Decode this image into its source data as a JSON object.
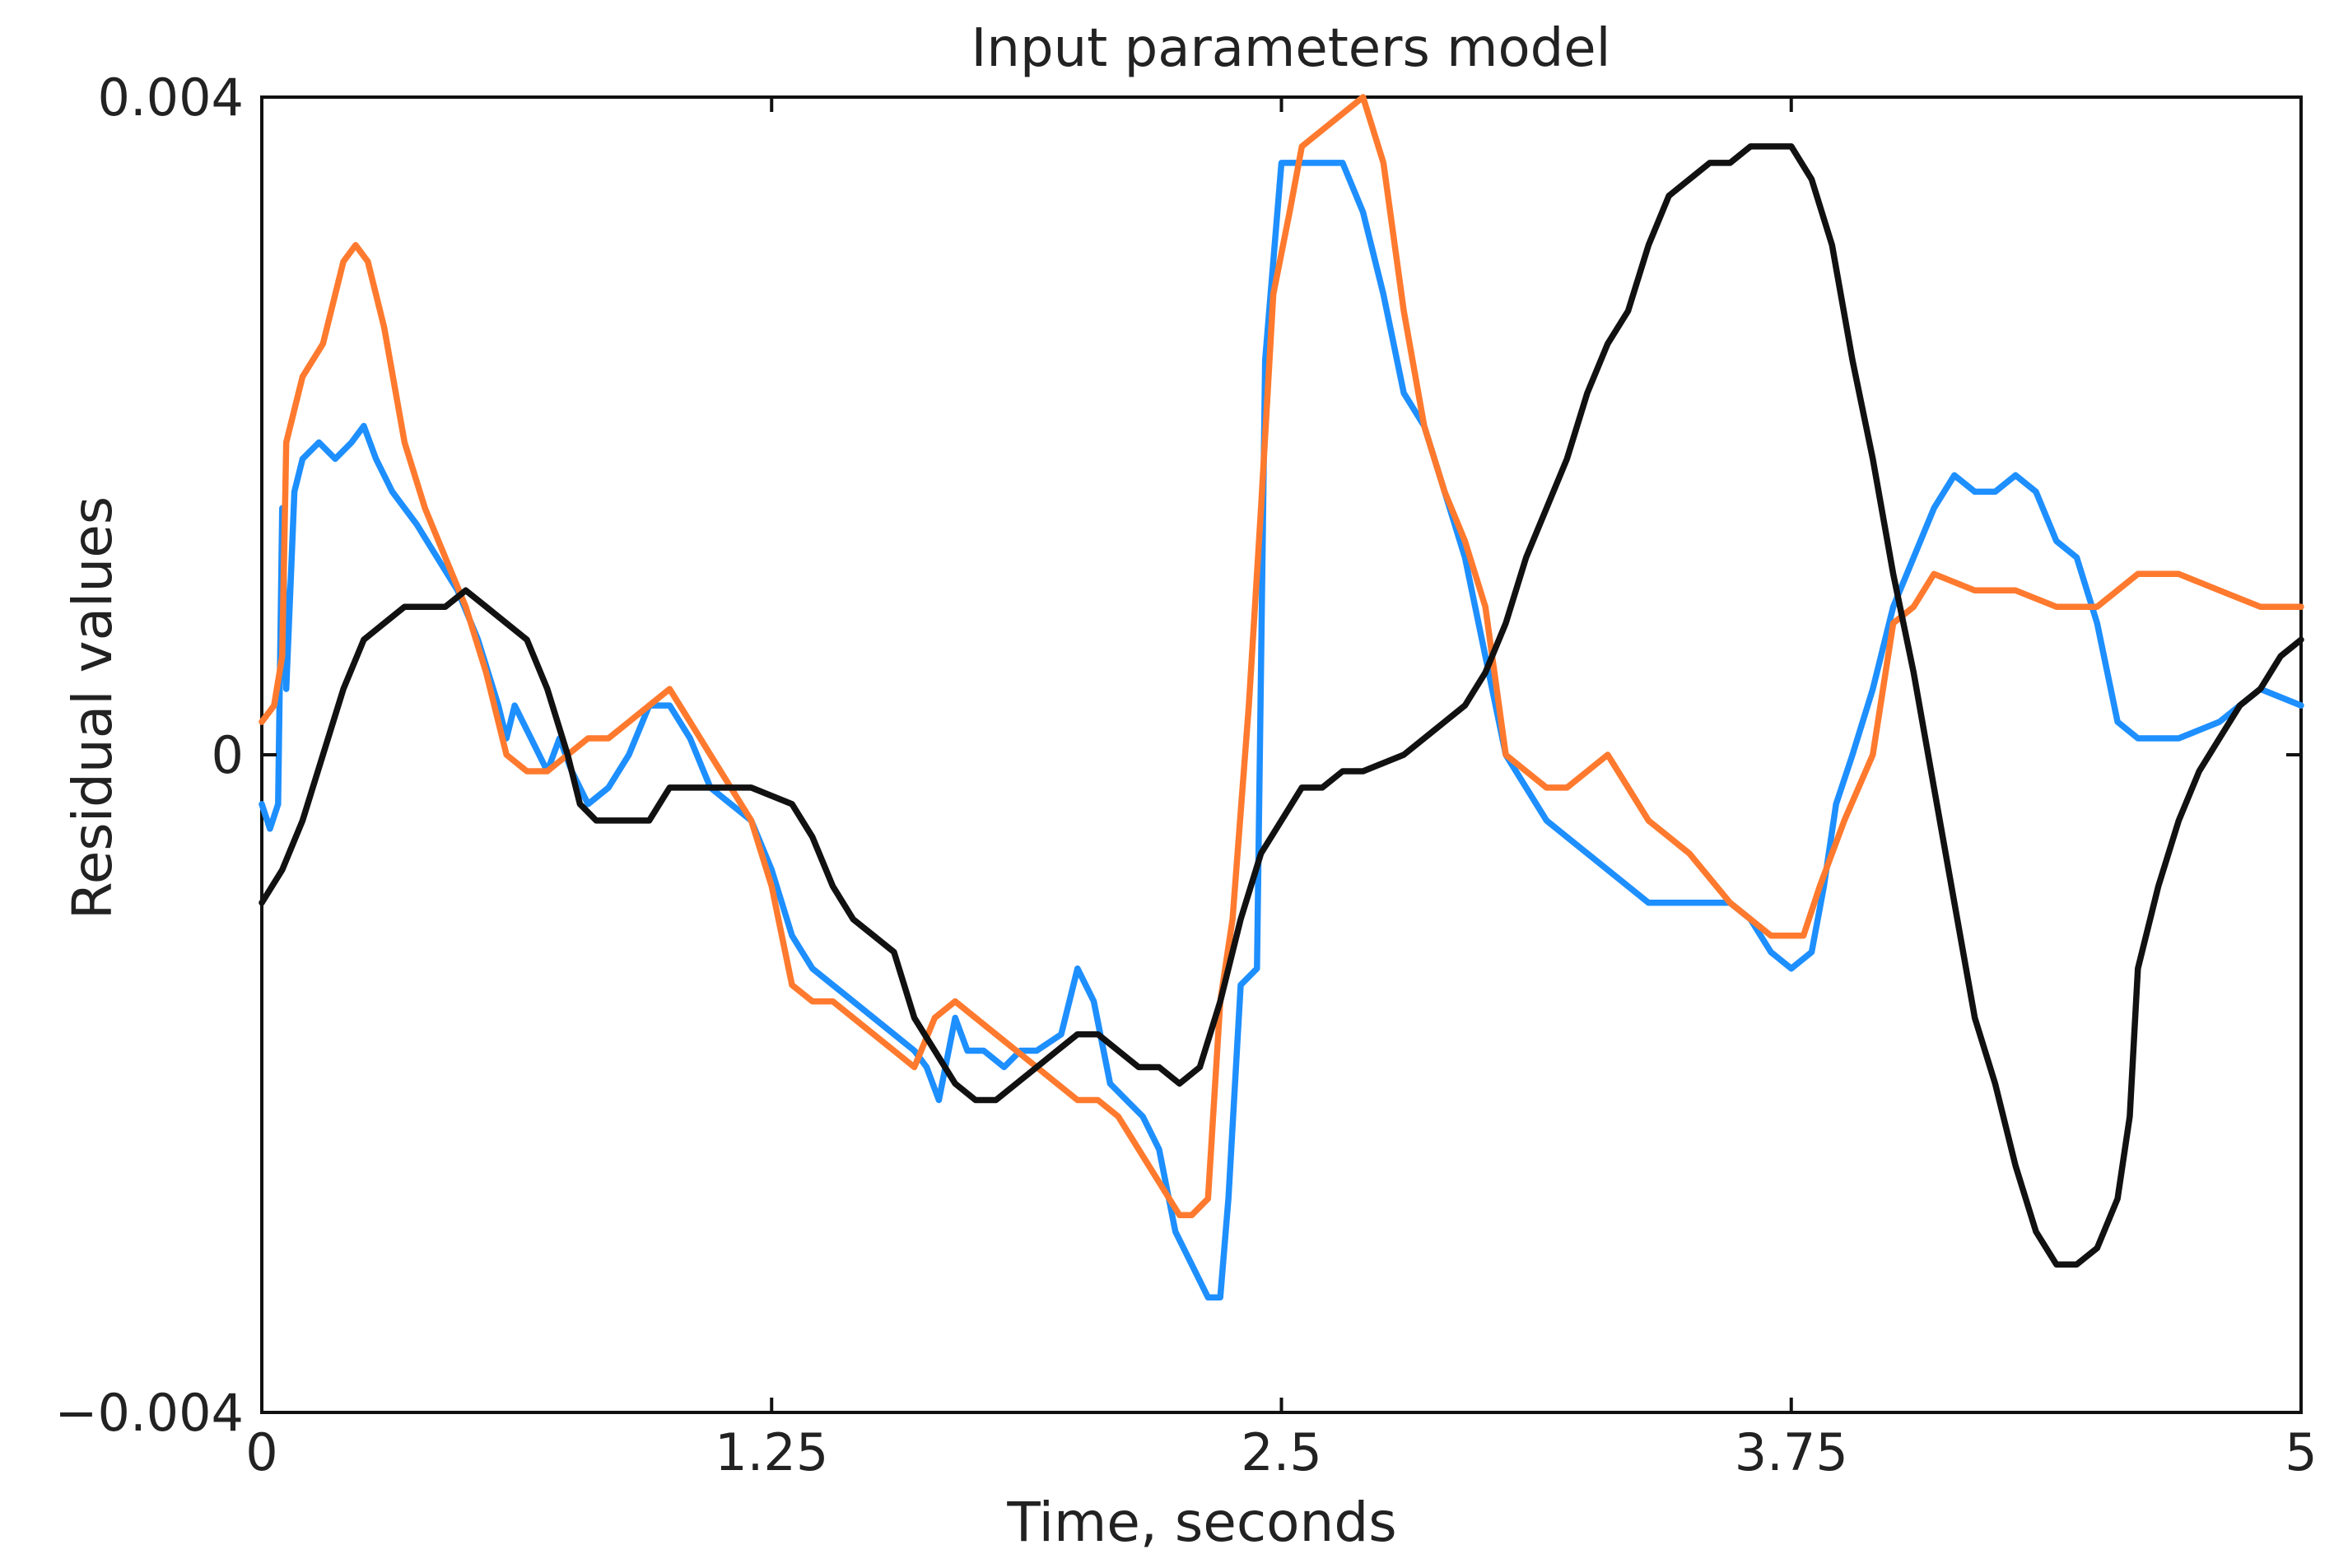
{
  "chart_data": {
    "type": "line",
    "title": "Input parameters model",
    "xlabel": "Time, seconds",
    "ylabel": "Residual values",
    "xlim": [
      0,
      5
    ],
    "ylim": [
      -0.004,
      0.004
    ],
    "x_ticks": [
      0,
      1.25,
      2.5,
      3.75,
      5
    ],
    "x_tick_labels": [
      "0",
      "1.25",
      "2.5",
      "3.75",
      "5"
    ],
    "y_ticks": [
      -0.004,
      0,
      0.004
    ],
    "y_tick_labels": [
      "−0.004",
      "0",
      "0.004"
    ],
    "grid": false,
    "legend": "none",
    "series": [
      {
        "color": "#1e8fff",
        "points": [
          [
            0,
            -0.0003
          ],
          [
            0.02,
            -0.00045
          ],
          [
            0.04,
            -0.0003
          ],
          [
            0.05,
            0.0015
          ],
          [
            0.06,
            0.0004
          ],
          [
            0.08,
            0.0016
          ],
          [
            0.1,
            0.0018
          ],
          [
            0.14,
            0.0019
          ],
          [
            0.18,
            0.0018
          ],
          [
            0.22,
            0.0019
          ],
          [
            0.25,
            0.002
          ],
          [
            0.28,
            0.0018
          ],
          [
            0.32,
            0.0016
          ],
          [
            0.38,
            0.0014
          ],
          [
            0.43,
            0.0012
          ],
          [
            0.48,
            0.001
          ],
          [
            0.53,
            0.0007
          ],
          [
            0.58,
            0.0003
          ],
          [
            0.6,
            0.0001
          ],
          [
            0.62,
            0.0003
          ],
          [
            0.66,
            0.0001
          ],
          [
            0.7,
            -0.0001
          ],
          [
            0.73,
            0.0001
          ],
          [
            0.76,
            -0.0001
          ],
          [
            0.8,
            -0.0003
          ],
          [
            0.85,
            -0.0002
          ],
          [
            0.9,
            0.0
          ],
          [
            0.95,
            0.0003
          ],
          [
            1.0,
            0.0003
          ],
          [
            1.05,
            0.0001
          ],
          [
            1.1,
            -0.0002
          ],
          [
            1.15,
            -0.0003
          ],
          [
            1.2,
            -0.0004
          ],
          [
            1.25,
            -0.0007
          ],
          [
            1.3,
            -0.0011
          ],
          [
            1.35,
            -0.0013
          ],
          [
            1.4,
            -0.0014
          ],
          [
            1.45,
            -0.0015
          ],
          [
            1.5,
            -0.0016
          ],
          [
            1.55,
            -0.0017
          ],
          [
            1.6,
            -0.0018
          ],
          [
            1.63,
            -0.0019
          ],
          [
            1.66,
            -0.0021
          ],
          [
            1.7,
            -0.0016
          ],
          [
            1.73,
            -0.0018
          ],
          [
            1.77,
            -0.0018
          ],
          [
            1.82,
            -0.0019
          ],
          [
            1.86,
            -0.0018
          ],
          [
            1.9,
            -0.0018
          ],
          [
            1.96,
            -0.0017
          ],
          [
            2.0,
            -0.0013
          ],
          [
            2.04,
            -0.0015
          ],
          [
            2.08,
            -0.002
          ],
          [
            2.12,
            -0.0021
          ],
          [
            2.16,
            -0.0022
          ],
          [
            2.2,
            -0.0024
          ],
          [
            2.24,
            -0.0029
          ],
          [
            2.28,
            -0.0031
          ],
          [
            2.32,
            -0.0033
          ],
          [
            2.35,
            -0.0033
          ],
          [
            2.37,
            -0.0027
          ],
          [
            2.4,
            -0.0014
          ],
          [
            2.44,
            -0.0013
          ],
          [
            2.46,
            0.0024
          ],
          [
            2.5,
            0.0036
          ],
          [
            2.55,
            0.0036
          ],
          [
            2.6,
            0.0036
          ],
          [
            2.65,
            0.0036
          ],
          [
            2.7,
            0.0033
          ],
          [
            2.75,
            0.0028
          ],
          [
            2.8,
            0.0022
          ],
          [
            2.85,
            0.002
          ],
          [
            2.9,
            0.0016
          ],
          [
            2.95,
            0.0012
          ],
          [
            3.0,
            0.0006
          ],
          [
            3.05,
            0.0
          ],
          [
            3.1,
            -0.0002
          ],
          [
            3.15,
            -0.0004
          ],
          [
            3.2,
            -0.0005
          ],
          [
            3.3,
            -0.0007
          ],
          [
            3.4,
            -0.0009
          ],
          [
            3.5,
            -0.0009
          ],
          [
            3.6,
            -0.0009
          ],
          [
            3.65,
            -0.001
          ],
          [
            3.7,
            -0.0012
          ],
          [
            3.75,
            -0.0013
          ],
          [
            3.8,
            -0.0012
          ],
          [
            3.83,
            -0.0008
          ],
          [
            3.86,
            -0.0003
          ],
          [
            3.9,
            0.0
          ],
          [
            3.95,
            0.0004
          ],
          [
            4.0,
            0.0009
          ],
          [
            4.05,
            0.0012
          ],
          [
            4.1,
            0.0015
          ],
          [
            4.15,
            0.0017
          ],
          [
            4.2,
            0.0016
          ],
          [
            4.25,
            0.0016
          ],
          [
            4.3,
            0.0017
          ],
          [
            4.35,
            0.0016
          ],
          [
            4.4,
            0.0013
          ],
          [
            4.45,
            0.0012
          ],
          [
            4.5,
            0.0008
          ],
          [
            4.55,
            0.0002
          ],
          [
            4.6,
            0.0001
          ],
          [
            4.7,
            0.0001
          ],
          [
            4.8,
            0.0002
          ],
          [
            4.9,
            0.0004
          ],
          [
            5.0,
            0.0003
          ]
        ]
      },
      {
        "color": "#ff7a2e",
        "points": [
          [
            0,
            0.0002
          ],
          [
            0.03,
            0.0003
          ],
          [
            0.05,
            0.0006
          ],
          [
            0.06,
            0.0019
          ],
          [
            0.1,
            0.0023
          ],
          [
            0.15,
            0.0025
          ],
          [
            0.2,
            0.003
          ],
          [
            0.23,
            0.0031
          ],
          [
            0.26,
            0.003
          ],
          [
            0.3,
            0.0026
          ],
          [
            0.35,
            0.0019
          ],
          [
            0.4,
            0.0015
          ],
          [
            0.45,
            0.0012
          ],
          [
            0.5,
            0.0009
          ],
          [
            0.55,
            0.0005
          ],
          [
            0.58,
            0.0002
          ],
          [
            0.6,
            0.0
          ],
          [
            0.65,
            -0.0001
          ],
          [
            0.7,
            -0.0001
          ],
          [
            0.75,
            0.0
          ],
          [
            0.8,
            0.0001
          ],
          [
            0.85,
            0.0001
          ],
          [
            0.9,
            0.0002
          ],
          [
            0.95,
            0.0003
          ],
          [
            1.0,
            0.0004
          ],
          [
            1.05,
            0.0002
          ],
          [
            1.1,
            0.0
          ],
          [
            1.15,
            -0.0002
          ],
          [
            1.2,
            -0.0004
          ],
          [
            1.25,
            -0.0008
          ],
          [
            1.3,
            -0.0014
          ],
          [
            1.35,
            -0.0015
          ],
          [
            1.4,
            -0.0015
          ],
          [
            1.45,
            -0.0016
          ],
          [
            1.5,
            -0.0017
          ],
          [
            1.55,
            -0.0018
          ],
          [
            1.6,
            -0.0019
          ],
          [
            1.65,
            -0.0016
          ],
          [
            1.7,
            -0.0015
          ],
          [
            1.75,
            -0.0016
          ],
          [
            1.8,
            -0.0017
          ],
          [
            1.85,
            -0.0018
          ],
          [
            1.9,
            -0.0019
          ],
          [
            1.95,
            -0.002
          ],
          [
            2.0,
            -0.0021
          ],
          [
            2.05,
            -0.0021
          ],
          [
            2.1,
            -0.0022
          ],
          [
            2.15,
            -0.0024
          ],
          [
            2.2,
            -0.0026
          ],
          [
            2.25,
            -0.0028
          ],
          [
            2.28,
            -0.0028
          ],
          [
            2.32,
            -0.0027
          ],
          [
            2.35,
            -0.0015
          ],
          [
            2.38,
            -0.001
          ],
          [
            2.42,
            0.0003
          ],
          [
            2.45,
            0.0015
          ],
          [
            2.48,
            0.0028
          ],
          [
            2.52,
            0.0033
          ],
          [
            2.55,
            0.0037
          ],
          [
            2.6,
            0.0038
          ],
          [
            2.65,
            0.0039
          ],
          [
            2.7,
            0.004
          ],
          [
            2.75,
            0.0036
          ],
          [
            2.8,
            0.0027
          ],
          [
            2.85,
            0.002
          ],
          [
            2.9,
            0.0016
          ],
          [
            2.95,
            0.0013
          ],
          [
            3.0,
            0.0009
          ],
          [
            3.05,
            0.0
          ],
          [
            3.1,
            -0.0001
          ],
          [
            3.15,
            -0.0002
          ],
          [
            3.2,
            -0.0002
          ],
          [
            3.25,
            -0.0001
          ],
          [
            3.3,
            0.0
          ],
          [
            3.35,
            -0.0002
          ],
          [
            3.4,
            -0.0004
          ],
          [
            3.5,
            -0.0006
          ],
          [
            3.6,
            -0.0009
          ],
          [
            3.7,
            -0.0011
          ],
          [
            3.75,
            -0.0011
          ],
          [
            3.78,
            -0.0011
          ],
          [
            3.82,
            -0.0008
          ],
          [
            3.88,
            -0.0004
          ],
          [
            3.95,
            0.0
          ],
          [
            4.0,
            0.0008
          ],
          [
            4.05,
            0.0009
          ],
          [
            4.1,
            0.0011
          ],
          [
            4.2,
            0.001
          ],
          [
            4.3,
            0.001
          ],
          [
            4.4,
            0.0009
          ],
          [
            4.5,
            0.0009
          ],
          [
            4.6,
            0.0011
          ],
          [
            4.7,
            0.0011
          ],
          [
            4.8,
            0.001
          ],
          [
            4.9,
            0.0009
          ],
          [
            5.0,
            0.0009
          ]
        ]
      },
      {
        "color": "#111111",
        "points": [
          [
            0,
            -0.0009
          ],
          [
            0.05,
            -0.0007
          ],
          [
            0.1,
            -0.0004
          ],
          [
            0.15,
            0.0
          ],
          [
            0.2,
            0.0004
          ],
          [
            0.25,
            0.0007
          ],
          [
            0.3,
            0.0008
          ],
          [
            0.35,
            0.0009
          ],
          [
            0.4,
            0.0009
          ],
          [
            0.45,
            0.0009
          ],
          [
            0.5,
            0.001
          ],
          [
            0.55,
            0.0009
          ],
          [
            0.6,
            0.0008
          ],
          [
            0.65,
            0.0007
          ],
          [
            0.7,
            0.0004
          ],
          [
            0.75,
            0.0
          ],
          [
            0.78,
            -0.0003
          ],
          [
            0.82,
            -0.0004
          ],
          [
            0.88,
            -0.0004
          ],
          [
            0.95,
            -0.0004
          ],
          [
            1.0,
            -0.0002
          ],
          [
            1.1,
            -0.0002
          ],
          [
            1.2,
            -0.0002
          ],
          [
            1.3,
            -0.0003
          ],
          [
            1.35,
            -0.0005
          ],
          [
            1.4,
            -0.0008
          ],
          [
            1.45,
            -0.001
          ],
          [
            1.5,
            -0.0011
          ],
          [
            1.55,
            -0.0012
          ],
          [
            1.6,
            -0.0016
          ],
          [
            1.65,
            -0.0018
          ],
          [
            1.7,
            -0.002
          ],
          [
            1.75,
            -0.0021
          ],
          [
            1.8,
            -0.0021
          ],
          [
            1.85,
            -0.002
          ],
          [
            1.9,
            -0.0019
          ],
          [
            1.95,
            -0.0018
          ],
          [
            2.0,
            -0.0017
          ],
          [
            2.05,
            -0.0017
          ],
          [
            2.1,
            -0.0018
          ],
          [
            2.15,
            -0.0019
          ],
          [
            2.2,
            -0.0019
          ],
          [
            2.25,
            -0.002
          ],
          [
            2.3,
            -0.0019
          ],
          [
            2.35,
            -0.0015
          ],
          [
            2.4,
            -0.001
          ],
          [
            2.45,
            -0.0006
          ],
          [
            2.5,
            -0.0004
          ],
          [
            2.55,
            -0.0002
          ],
          [
            2.6,
            -0.0002
          ],
          [
            2.65,
            -0.0001
          ],
          [
            2.7,
            -0.0001
          ],
          [
            2.8,
            0.0
          ],
          [
            2.9,
            0.0002
          ],
          [
            2.95,
            0.0003
          ],
          [
            3.0,
            0.0005
          ],
          [
            3.05,
            0.0008
          ],
          [
            3.1,
            0.0012
          ],
          [
            3.15,
            0.0015
          ],
          [
            3.2,
            0.0018
          ],
          [
            3.25,
            0.0022
          ],
          [
            3.3,
            0.0025
          ],
          [
            3.35,
            0.0027
          ],
          [
            3.4,
            0.0031
          ],
          [
            3.45,
            0.0034
          ],
          [
            3.5,
            0.0035
          ],
          [
            3.55,
            0.0036
          ],
          [
            3.6,
            0.0036
          ],
          [
            3.65,
            0.0037
          ],
          [
            3.7,
            0.0037
          ],
          [
            3.75,
            0.0037
          ],
          [
            3.8,
            0.0035
          ],
          [
            3.85,
            0.0031
          ],
          [
            3.9,
            0.0024
          ],
          [
            3.95,
            0.0018
          ],
          [
            4.0,
            0.0011
          ],
          [
            4.05,
            0.0005
          ],
          [
            4.1,
            -0.0002
          ],
          [
            4.15,
            -0.0009
          ],
          [
            4.2,
            -0.0016
          ],
          [
            4.25,
            -0.002
          ],
          [
            4.3,
            -0.0025
          ],
          [
            4.35,
            -0.0029
          ],
          [
            4.4,
            -0.0031
          ],
          [
            4.45,
            -0.0031
          ],
          [
            4.5,
            -0.003
          ],
          [
            4.55,
            -0.0027
          ],
          [
            4.58,
            -0.0022
          ],
          [
            4.6,
            -0.0013
          ],
          [
            4.65,
            -0.0008
          ],
          [
            4.7,
            -0.0004
          ],
          [
            4.75,
            -0.0001
          ],
          [
            4.8,
            0.0001
          ],
          [
            4.85,
            0.0003
          ],
          [
            4.9,
            0.0004
          ],
          [
            4.95,
            0.0006
          ],
          [
            5.0,
            0.0007
          ]
        ]
      }
    ]
  }
}
